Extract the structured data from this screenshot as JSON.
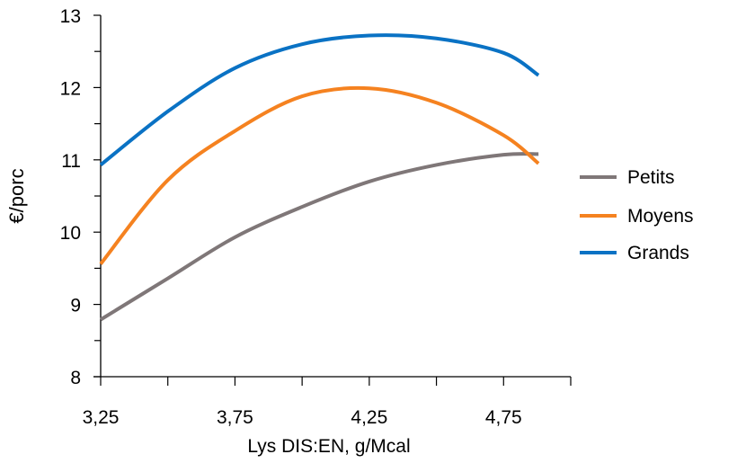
{
  "chart_data": {
    "type": "line",
    "title": "",
    "xlabel": "Lys DIS:EN, g/Mcal",
    "ylabel": "€/porc",
    "xlim": [
      3.25,
      5.0
    ],
    "ylim": [
      8,
      13
    ],
    "x_tick_labels": [
      {
        "value": 3.25,
        "label": "3,25"
      },
      {
        "value": 3.75,
        "label": "3,75"
      },
      {
        "value": 4.25,
        "label": "4,25"
      },
      {
        "value": 4.75,
        "label": "4,75"
      }
    ],
    "x_minor_ticks": [
      3.5,
      4.0,
      4.5,
      5.0
    ],
    "y_ticks": [
      8,
      9,
      10,
      11,
      12,
      13
    ],
    "y_minor_ticks": [
      8.5,
      9.5,
      10.5,
      11.5,
      12.5
    ],
    "grid": false,
    "legend_position": "right",
    "series": [
      {
        "name": "Petits",
        "color": "#7f7778",
        "x": [
          3.25,
          3.5,
          3.75,
          4.0,
          4.25,
          4.5,
          4.75,
          4.88
        ],
        "y": [
          8.79,
          9.36,
          9.93,
          10.35,
          10.7,
          10.93,
          11.07,
          11.08
        ]
      },
      {
        "name": "Moyens",
        "color": "#f58220",
        "x": [
          3.25,
          3.5,
          3.75,
          4.0,
          4.25,
          4.5,
          4.75,
          4.88
        ],
        "y": [
          9.56,
          10.72,
          11.4,
          11.88,
          11.99,
          11.79,
          11.34,
          10.95
        ]
      },
      {
        "name": "Grands",
        "color": "#0a72c4",
        "x": [
          3.25,
          3.5,
          3.75,
          4.0,
          4.25,
          4.5,
          4.75,
          4.88
        ],
        "y": [
          10.93,
          11.67,
          12.27,
          12.6,
          12.72,
          12.68,
          12.48,
          12.17
        ]
      }
    ]
  }
}
